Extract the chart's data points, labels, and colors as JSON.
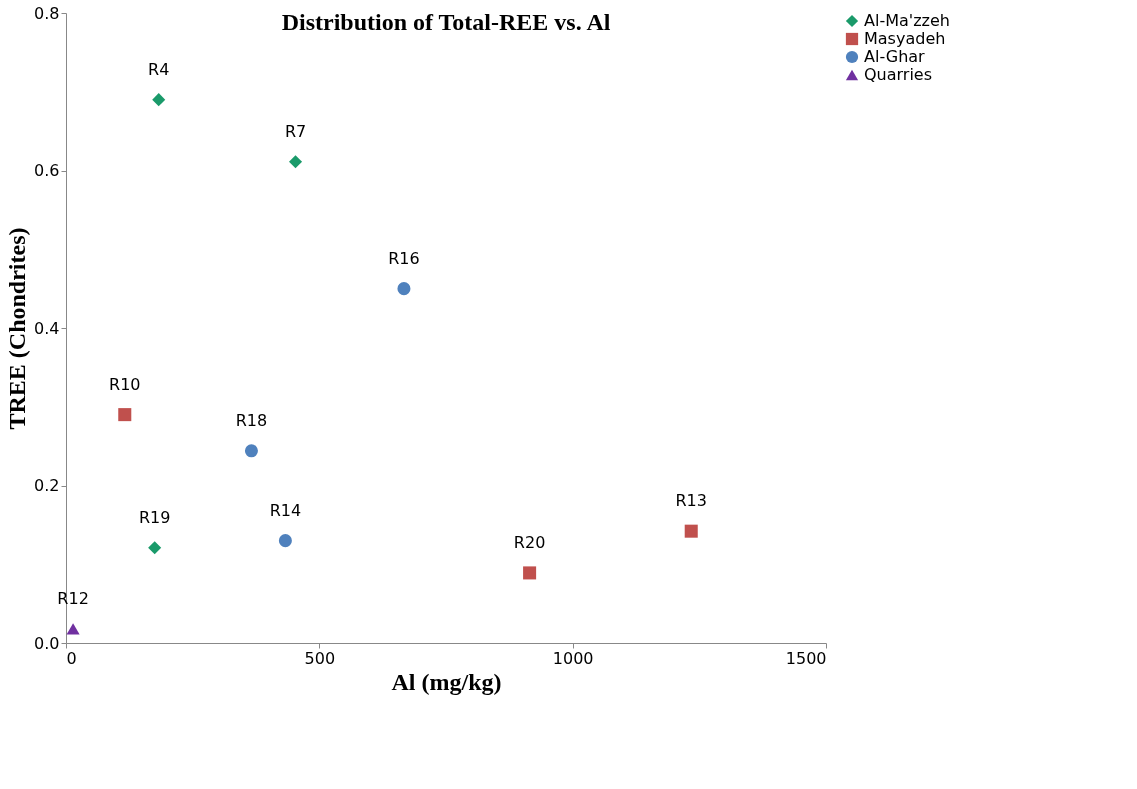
{
  "chart_data": {
    "type": "scatter",
    "title": "Distribution of Total-REE vs. Al",
    "xlabel": "Al (mg/kg)",
    "ylabel": "TREE (Chondrites)",
    "xlim": [
      0,
      1500
    ],
    "xticks": [
      0,
      500,
      1000,
      1500
    ],
    "ylim": [
      0,
      0.8
    ],
    "yticks": [
      {
        "value": 0,
        "label": "0.0"
      },
      0.2,
      0.4,
      0.6,
      0.8
    ],
    "grid": false,
    "legend": "right",
    "series": [
      {
        "name": "Al-Ma'zzeh",
        "color": "#1a9a6a",
        "marker": "diamond",
        "x": [
          183,
          453,
          175
        ],
        "values": [
          0.69,
          0.611,
          0.121
        ]
      },
      {
        "name": "Masyadeh",
        "color": "#c0504d",
        "marker": "square",
        "x": [
          116,
          915,
          1234
        ],
        "values": [
          0.29,
          0.089,
          0.142
        ]
      },
      {
        "name": "Al-Ghar",
        "color": "#4f81bd",
        "marker": "circle",
        "x": [
          667,
          366,
          433
        ],
        "values": [
          0.45,
          0.244,
          0.13
        ]
      },
      {
        "name": "Quarries",
        "color": "#7030a0",
        "marker": "triangle",
        "x": [
          14
        ],
        "values": [
          0.018
        ]
      }
    ],
    "annotations": [
      {
        "text": "R4",
        "x": 183,
        "y": 0.69
      },
      {
        "text": "R7",
        "x": 453,
        "y": 0.611
      },
      {
        "text": "R19",
        "x": 175,
        "y": 0.121
      },
      {
        "text": "R10",
        "x": 116,
        "y": 0.29
      },
      {
        "text": "R20",
        "x": 915,
        "y": 0.089
      },
      {
        "text": "R13",
        "x": 1234,
        "y": 0.142
      },
      {
        "text": "R16",
        "x": 667,
        "y": 0.45
      },
      {
        "text": "R18",
        "x": 366,
        "y": 0.244
      },
      {
        "text": "R14",
        "x": 433,
        "y": 0.13
      },
      {
        "text": "R12",
        "x": 14,
        "y": 0.018
      }
    ]
  }
}
